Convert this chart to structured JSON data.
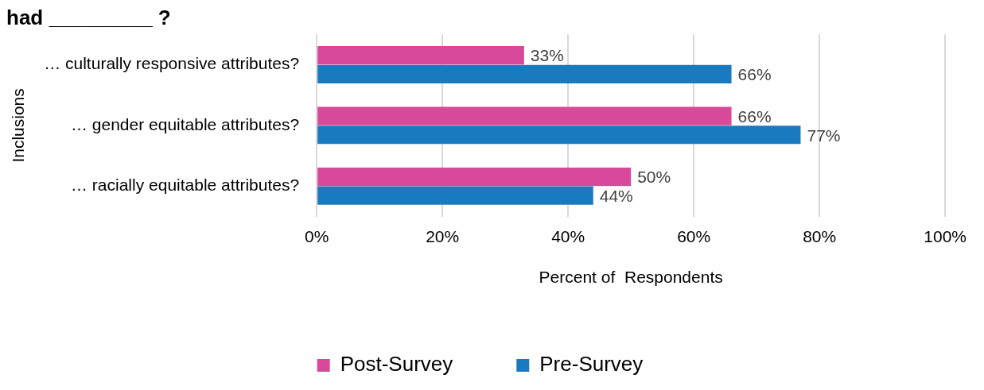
{
  "chart_data": {
    "type": "bar",
    "orientation": "horizontal",
    "title": "had _________ ?",
    "ylabel": "Inclusions",
    "xlabel": "Percent of  Respondents",
    "categories": [
      "… culturally responsive attributes?",
      "… gender equitable attributes?",
      "… racially equitable attributes?"
    ],
    "series": [
      {
        "name": "Post-Survey",
        "color": "#d9499a",
        "values": [
          33,
          66,
          50
        ]
      },
      {
        "name": "Pre-Survey",
        "color": "#1a7abf",
        "values": [
          66,
          77,
          44
        ]
      }
    ],
    "xlim": [
      0,
      100
    ],
    "xticks": [
      {
        "value": 0,
        "label": "0%"
      },
      {
        "value": 20,
        "label": "20%"
      },
      {
        "value": 40,
        "label": "40%"
      },
      {
        "value": 60,
        "label": "60%"
      },
      {
        "value": 80,
        "label": "80%"
      },
      {
        "value": 100,
        "label": "100%"
      }
    ],
    "value_labels": [
      [
        "33%",
        "66%",
        "50%"
      ],
      [
        "66%",
        "77%",
        "44%"
      ]
    ],
    "grid": "x",
    "legend": "bottom"
  }
}
